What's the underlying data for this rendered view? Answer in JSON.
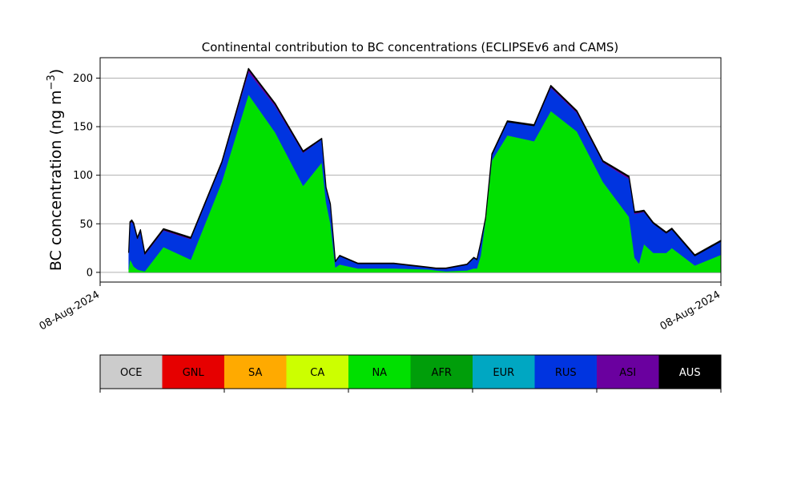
{
  "chart_data": {
    "type": "area",
    "stacked": true,
    "title": "Continental contribution to BC concentrations (ECLIPSEv6 and CAMS)",
    "ylabel": "BC concentration (ng m$^{-3}$)",
    "ylabel_main": "BC concentration (ng m",
    "ylabel_sup": "−3",
    "ylabel_end": ")",
    "xlabel": "",
    "x_tick_labels": [
      "08-Aug-2024",
      "08-Aug-2024"
    ],
    "x_range": [
      0,
      100
    ],
    "ylim": [
      -10,
      221
    ],
    "y_ticks": [
      0,
      50,
      100,
      150,
      200
    ],
    "grid": "horizontal",
    "x": [
      4.6,
      4.8,
      5.1,
      5.4,
      6.0,
      6.5,
      7.2,
      10.2,
      14.6,
      19.6,
      23.9,
      28.2,
      32.7,
      35.7,
      36.4,
      37.1,
      37.9,
      38.6,
      41.5,
      47.3,
      52.8,
      54.1,
      55.7,
      59.1,
      60.2,
      60.7,
      61.3,
      62.1,
      63.1,
      65.6,
      69.9,
      72.6,
      76.8,
      81.0,
      85.2,
      86.1,
      86.8,
      87.6,
      89.1,
      91.2,
      92.1,
      95.8,
      100.0
    ],
    "series": [
      {
        "name": "AUS",
        "color": "#000000",
        "values": [
          0,
          0,
          0,
          0,
          0,
          0,
          0,
          0,
          0,
          0,
          0,
          0,
          0,
          0,
          0,
          0,
          0,
          0,
          0,
          0,
          0,
          0,
          0,
          0,
          0,
          0,
          0,
          0,
          0,
          0,
          0,
          0,
          0,
          0,
          0,
          0,
          0,
          0,
          0,
          0,
          0,
          0,
          0
        ]
      },
      {
        "name": "ASI",
        "color": "#6a009f",
        "values": [
          0,
          0,
          0,
          0,
          0,
          0,
          0,
          0,
          0,
          0,
          0,
          0,
          0,
          0,
          0,
          0,
          0,
          0,
          0,
          0,
          0,
          0,
          0,
          0,
          0,
          0,
          0,
          0,
          0,
          0,
          0,
          0,
          0,
          0,
          0,
          0,
          0,
          0,
          0,
          0,
          0,
          0,
          0
        ]
      },
      {
        "name": "NA",
        "color": "#00e000",
        "values": [
          3,
          13,
          10,
          6,
          3,
          2,
          1,
          26,
          13,
          93,
          183,
          144,
          89,
          113,
          72,
          50,
          5,
          8,
          4,
          4,
          3,
          2,
          1,
          2,
          4,
          4,
          17,
          55,
          115,
          141,
          135,
          166,
          145,
          93,
          57,
          15,
          9,
          29,
          20,
          20,
          25,
          7,
          18
        ]
      },
      {
        "name": "RUS",
        "color": "#0034e0",
        "values": [
          17,
          37,
          42,
          43,
          31,
          40,
          17,
          17,
          21,
          19,
          23,
          27,
          34,
          24,
          15,
          20,
          6,
          9,
          5,
          5,
          2,
          2,
          3,
          6,
          11,
          9,
          13,
          1,
          6,
          14,
          16,
          24,
          19,
          20,
          39,
          45,
          52,
          33,
          30,
          20,
          19,
          10,
          14
        ]
      },
      {
        "name": "ASI",
        "color": "#6a009f",
        "values": [
          0.5,
          1,
          1,
          1,
          1,
          1,
          1,
          1,
          1,
          1,
          3,
          2,
          1,
          0.5,
          0,
          0,
          0,
          0,
          0,
          0,
          0,
          0,
          0,
          0,
          0,
          0,
          0,
          0,
          0,
          0,
          0,
          1.5,
          1.5,
          1,
          2,
          1.5,
          1,
          1,
          0.5,
          0.5,
          0.5,
          0,
          0
        ]
      },
      {
        "name": "AUS",
        "color": "#000000",
        "values": [
          0.5,
          1,
          1,
          1,
          1,
          1,
          1,
          1,
          1,
          1,
          1,
          1,
          1,
          0.5,
          0.5,
          0.5,
          0.5,
          0.5,
          0.5,
          0.5,
          0.5,
          0.5,
          0.5,
          0.5,
          0.5,
          0.5,
          0.5,
          0.5,
          1,
          1,
          1,
          1,
          1,
          1,
          1,
          1,
          1,
          1,
          1,
          1,
          1,
          1,
          1
        ]
      }
    ],
    "legend": {
      "placement": "bottom",
      "entries": [
        {
          "name": "OCE",
          "color": "#cccccc",
          "text_color": "#000000"
        },
        {
          "name": "GNL",
          "color": "#e60000",
          "text_color": "#000000"
        },
        {
          "name": "SA",
          "color": "#ffaa00",
          "text_color": "#000000"
        },
        {
          "name": "CA",
          "color": "#ccff00",
          "text_color": "#000000"
        },
        {
          "name": "NA",
          "color": "#00e000",
          "text_color": "#000000"
        },
        {
          "name": "AFR",
          "color": "#009e0a",
          "text_color": "#000000"
        },
        {
          "name": "EUR",
          "color": "#00a7c2",
          "text_color": "#000000"
        },
        {
          "name": "RUS",
          "color": "#0034e0",
          "text_color": "#000000"
        },
        {
          "name": "ASI",
          "color": "#6a009f",
          "text_color": "#000000"
        },
        {
          "name": "AUS",
          "color": "#000000",
          "text_color": "#ffffff"
        }
      ]
    }
  }
}
